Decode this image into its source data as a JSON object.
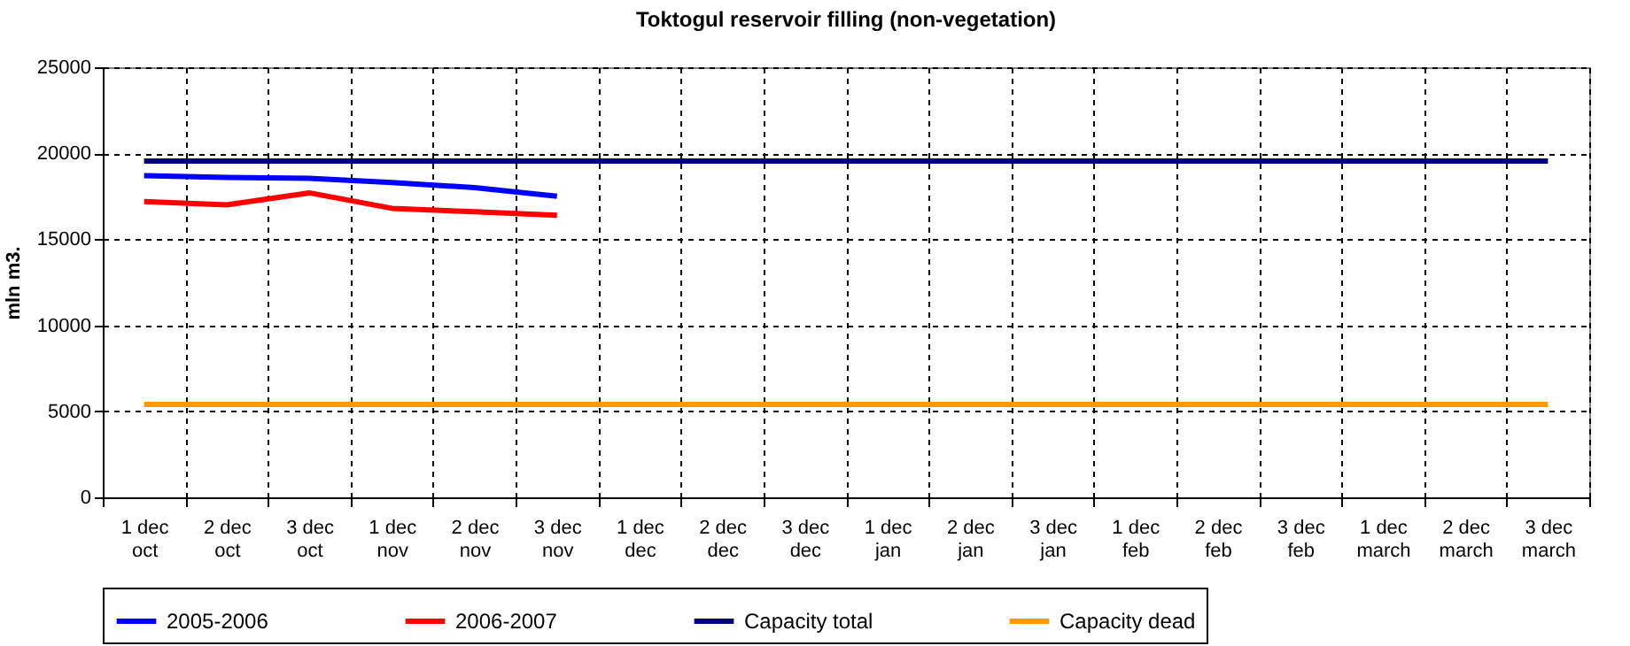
{
  "chart_data": {
    "type": "line",
    "title": "Toktogul  reservoir filling (non-vegetation)",
    "ylabel": "mln m3.",
    "categories": [
      "1 dec oct",
      "2 dec oct",
      "3 dec oct",
      "1 dec nov",
      "2 dec nov",
      "3 dec nov",
      "1 dec dec",
      "2 dec dec",
      "3 dec dec",
      "1 dec jan",
      "2 dec jan",
      "3 dec jan",
      "1 dec feb",
      "2 dec feb",
      "3 dec feb",
      "1 dec march",
      "2 dec march",
      "3 dec march"
    ],
    "series": [
      {
        "name": "2005-2006",
        "color": "#0000ff",
        "values": [
          18700,
          18600,
          18550,
          18300,
          18000,
          17500,
          null,
          null,
          null,
          null,
          null,
          null,
          null,
          null,
          null,
          null,
          null,
          null
        ]
      },
      {
        "name": "2006-2007",
        "color": "#ff0000",
        "values": [
          17200,
          17000,
          17700,
          16800,
          16600,
          16400,
          null,
          null,
          null,
          null,
          null,
          null,
          null,
          null,
          null,
          null,
          null,
          null
        ]
      },
      {
        "name": "Capacity total",
        "color": "#000080",
        "values": [
          19550,
          19550,
          19550,
          19550,
          19550,
          19550,
          19550,
          19550,
          19550,
          19550,
          19550,
          19550,
          19550,
          19550,
          19550,
          19550,
          19550,
          19550
        ]
      },
      {
        "name": "Capacity dead",
        "color": "#ff9900",
        "values": [
          5400,
          5400,
          5400,
          5400,
          5400,
          5400,
          5400,
          5400,
          5400,
          5400,
          5400,
          5400,
          5400,
          5400,
          5400,
          5400,
          5400,
          5400
        ]
      }
    ],
    "ylim": [
      0,
      25000
    ],
    "yticks": [
      0,
      5000,
      10000,
      15000,
      20000,
      25000
    ],
    "grid": true,
    "legend": "bottom",
    "line_style": "solid"
  }
}
